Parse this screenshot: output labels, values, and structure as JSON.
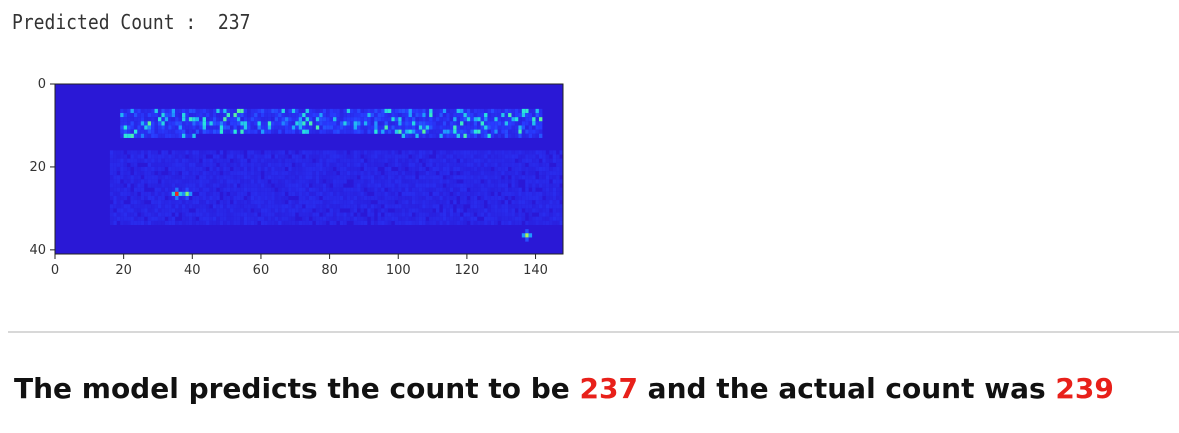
{
  "output": {
    "label": "Predicted Count :",
    "value": "237"
  },
  "chart_data": {
    "type": "heatmap",
    "x_ticks": [
      "0",
      "20",
      "40",
      "60",
      "80",
      "100",
      "120",
      "140"
    ],
    "y_ticks": [
      "0",
      "20",
      "40"
    ],
    "xlim": [
      0,
      148
    ],
    "ylim": [
      41,
      0
    ],
    "colormap": "jet-like (deep blue background, cyan/green/yellow/red hotspots)",
    "background_color": "#2a1ad8",
    "hotspots": [
      {
        "x": 35,
        "y": 26,
        "intensity": 1.0
      },
      {
        "x": 38,
        "y": 26,
        "intensity": 0.75
      },
      {
        "x": 137,
        "y": 36,
        "intensity": 0.8
      },
      {
        "x": 122,
        "y": 11,
        "intensity": 0.6
      },
      {
        "x": 84,
        "y": 9,
        "intensity": 0.55
      },
      {
        "x": 108,
        "y": 10,
        "intensity": 0.55
      }
    ]
  },
  "caption": {
    "part1": "The model predicts the count to be ",
    "predicted": "237",
    "part2": " and the actual count was ",
    "actual": "239"
  }
}
